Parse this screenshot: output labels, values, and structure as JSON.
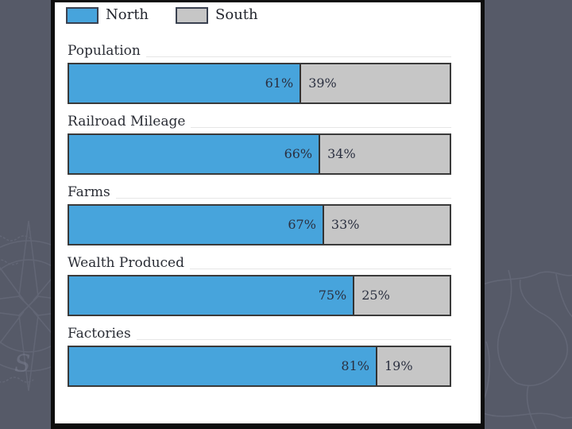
{
  "colors": {
    "north": "#47a4dc",
    "south": "#c6c6c6",
    "background": "#565a68",
    "panel": "#ffffff",
    "bar_border": "#3a3a3a",
    "frame": "#0e0e0e",
    "label_text": "#2a2d35"
  },
  "legend": {
    "position": "top-left",
    "items": [
      {
        "label": "North"
      },
      {
        "label": "South"
      }
    ]
  },
  "chart_data": {
    "type": "bar",
    "orientation": "horizontal",
    "stacked": true,
    "unit": "percent",
    "axis_shown": false,
    "grid": false,
    "legend_position": "top-left",
    "value_labels": "inside-segments",
    "categories": [
      "Population",
      "Railroad Mileage",
      "Farms",
      "Wealth Produced",
      "Factories"
    ],
    "series": [
      {
        "name": "North",
        "color": "#47a4dc",
        "values": [
          61,
          66,
          67,
          75,
          81
        ]
      },
      {
        "name": "South",
        "color": "#c6c6c6",
        "values": [
          39,
          34,
          33,
          25,
          19
        ]
      }
    ],
    "rows": [
      {
        "category": "Population",
        "north_pct": 61,
        "south_pct": 39,
        "north_label": "61%",
        "south_label": "39%"
      },
      {
        "category": "Railroad Mileage",
        "north_pct": 66,
        "south_pct": 34,
        "north_label": "66%",
        "south_label": "34%"
      },
      {
        "category": "Farms",
        "north_pct": 67,
        "south_pct": 33,
        "north_label": "67%",
        "south_label": "33%"
      },
      {
        "category": "Wealth Produced",
        "north_pct": 75,
        "south_pct": 25,
        "north_label": "75%",
        "south_label": "25%"
      },
      {
        "category": "Factories",
        "north_pct": 81,
        "south_pct": 19,
        "north_label": "81%",
        "south_label": "19%"
      }
    ]
  }
}
